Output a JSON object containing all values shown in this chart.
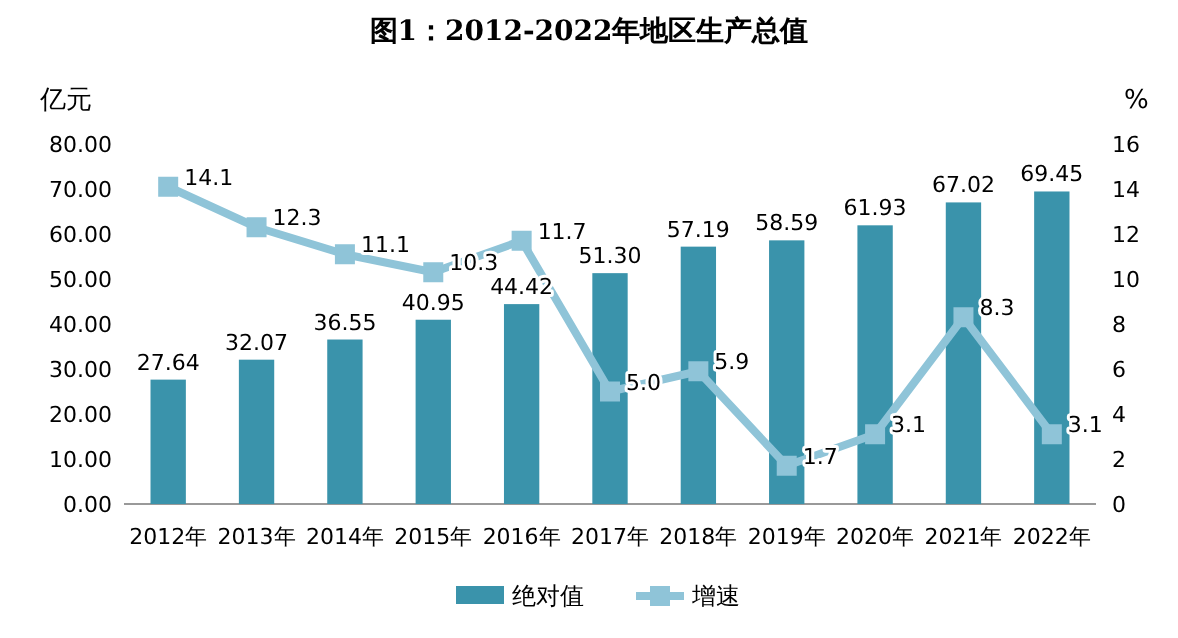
{
  "chart_data": {
    "type": "bar",
    "title": "图1：2012-2022年地区生产总值",
    "ylabel": "亿元",
    "y2label": "%",
    "categories": [
      "2012年",
      "2013年",
      "2014年",
      "2015年",
      "2016年",
      "2017年",
      "2018年",
      "2019年",
      "2020年",
      "2021年",
      "2022年"
    ],
    "series": [
      {
        "name": "绝对值",
        "color": "#3a93ab",
        "values": [
          27.64,
          32.07,
          36.55,
          40.95,
          44.42,
          51.3,
          57.19,
          58.59,
          61.93,
          67.02,
          69.45
        ],
        "value_labels": [
          "27.64",
          "32.07",
          "36.55",
          "40.95",
          "44.42",
          "51.30",
          "57.19",
          "58.59",
          "61.93",
          "67.02",
          "69.45"
        ]
      },
      {
        "name": "增速",
        "type": "line",
        "axis": "y2",
        "color": "#8fc4d8",
        "marker": "square",
        "line_style": "solid",
        "values": [
          14.1,
          12.3,
          11.1,
          10.3,
          11.7,
          5.0,
          5.9,
          1.7,
          3.1,
          8.3,
          3.1
        ],
        "value_labels": [
          "14.1",
          "12.3",
          "11.1",
          "10.3",
          "11.7",
          "5.0",
          "5.9",
          "1.7",
          "3.1",
          "8.3",
          "3.1"
        ]
      }
    ],
    "ylim": [
      0,
      80
    ],
    "yticks": [
      {
        "value": 0,
        "label": "0.00"
      },
      {
        "value": 10,
        "label": "10.00"
      },
      {
        "value": 20,
        "label": "20.00"
      },
      {
        "value": 30,
        "label": "30.00"
      },
      {
        "value": 40,
        "label": "40.00"
      },
      {
        "value": 50,
        "label": "50.00"
      },
      {
        "value": 60,
        "label": "60.00"
      },
      {
        "value": 70,
        "label": "70.00"
      },
      {
        "value": 80,
        "label": "80.00"
      }
    ],
    "y2lim": [
      0,
      16
    ],
    "y2ticks": [
      0,
      2,
      4,
      6,
      8,
      10,
      12,
      14,
      16
    ],
    "legend": "bottom"
  }
}
